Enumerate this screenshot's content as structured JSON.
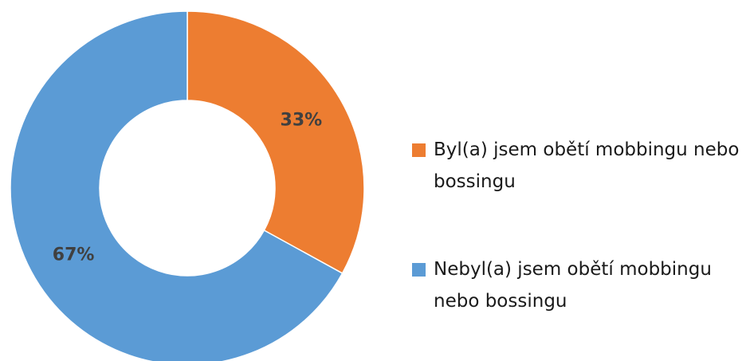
{
  "chart_data": {
    "type": "donut",
    "categories": [
      "Byl(a) jsem obětí mobbingu nebo bossingu",
      "Nebyl(a) jsem obětí mobbingu nebo bossingu"
    ],
    "values": [
      33,
      67
    ],
    "value_labels": [
      "33%",
      "67%"
    ],
    "colors": [
      "#ed7d31",
      "#5b9bd5"
    ],
    "legend": "right"
  }
}
